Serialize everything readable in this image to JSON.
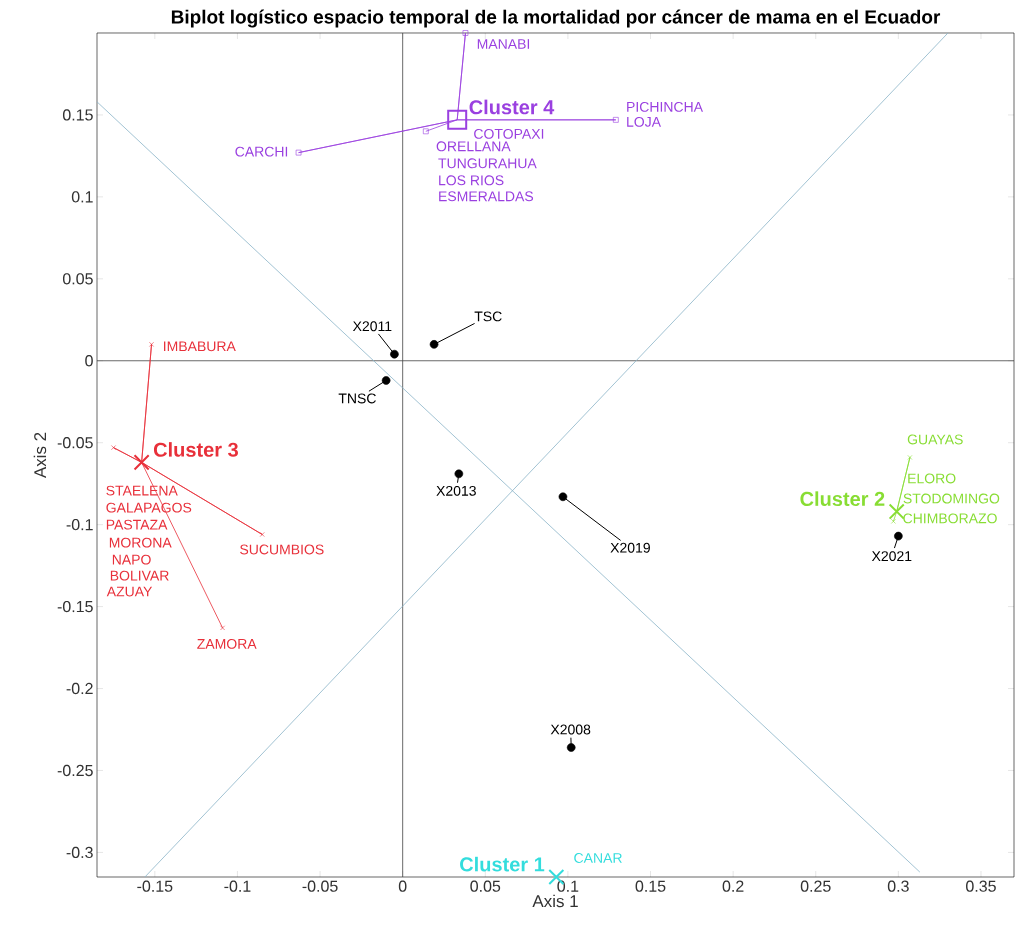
{
  "chart_data": {
    "type": "scatter",
    "title": "Biplot logístico espacio temporal de la mortalidad por cáncer de mama en el Ecuador",
    "xlabel": "Axis 1",
    "ylabel": "Axis 2",
    "xlim": [
      -0.185,
      0.37
    ],
    "ylim": [
      -0.315,
      0.2
    ],
    "xticks": [
      -0.15,
      -0.1,
      -0.05,
      0,
      0.05,
      0.1,
      0.15,
      0.2,
      0.25,
      0.3,
      0.35
    ],
    "yticks": [
      -0.3,
      -0.25,
      -0.2,
      -0.15,
      -0.1,
      -0.05,
      0,
      0.05,
      0.1,
      0.15
    ],
    "series": [
      {
        "type": "line",
        "color": "#444444",
        "x": [
          0,
          0
        ],
        "values": [
          -0.315,
          0.2
        ]
      },
      {
        "type": "line",
        "color": "#444444",
        "x": [
          -0.185,
          0.37
        ],
        "values": [
          0,
          0
        ]
      },
      {
        "type": "line",
        "color": "#8ab4c8",
        "x": [
          -0.185,
          0.313
        ],
        "values": [
          0.158,
          -0.312
        ]
      },
      {
        "type": "line",
        "color": "#8ab4c8",
        "x": [
          -0.156,
          0.33
        ],
        "values": [
          -0.315,
          0.2
        ]
      },
      {
        "type": "line",
        "color": "#9a40e0",
        "marker": "square",
        "x": [
          0.033,
          0.038,
          0.033,
          0.129,
          0.033,
          -0.063,
          0.033,
          0.014
        ],
        "values": [
          0.147,
          0.2,
          0.147,
          0.147,
          0.147,
          0.127,
          0.147,
          0.14
        ]
      },
      {
        "type": "line",
        "color": "#e8303a",
        "marker": "cross",
        "x": [
          -0.158,
          -0.152,
          -0.158,
          -0.175,
          -0.158,
          -0.085,
          -0.158,
          -0.109
        ],
        "values": [
          -0.062,
          0.01,
          -0.062,
          -0.053,
          -0.062,
          -0.106,
          -0.062,
          -0.163
        ]
      },
      {
        "type": "line",
        "color": "#88dd33",
        "marker": "cross",
        "x": [
          0.299,
          0.307,
          0.299,
          0.297
        ],
        "values": [
          -0.092,
          -0.059,
          -0.092,
          -0.098
        ]
      },
      {
        "name": "Cluster 4",
        "color": "#9a40e0",
        "marker": "square",
        "x": [
          0.033
        ],
        "values": [
          0.147
        ]
      },
      {
        "name": "Cluster 3",
        "color": "#e8303a",
        "marker": "cross",
        "x": [
          -0.158
        ],
        "values": [
          -0.062
        ]
      },
      {
        "name": "Cluster 2",
        "color": "#88dd33",
        "marker": "cross",
        "x": [
          0.299
        ],
        "values": [
          -0.092
        ]
      },
      {
        "name": "Cluster 1",
        "color": "#33dddd",
        "marker": "cross",
        "x": [
          0.093
        ],
        "values": [
          -0.315
        ]
      },
      {
        "color": "#000000",
        "marker": "circle",
        "x": [
          -0.005,
          0.019,
          -0.01,
          0.034,
          0.097,
          0.3,
          0.102
        ],
        "values": [
          0.004,
          0.01,
          -0.012,
          -0.069,
          -0.083,
          -0.107,
          -0.236
        ]
      }
    ],
    "annotations": [
      {
        "text": "MANABI",
        "x": 0.038,
        "y": 0.2
      },
      {
        "text": "PICHINCHA",
        "x": 0.129,
        "y": 0.147
      },
      {
        "text": "LOJA",
        "x": 0.129,
        "y": 0.147
      },
      {
        "text": "COTOPAXI",
        "x": 0.033,
        "y": 0.147
      },
      {
        "text": "ORELLANA",
        "x": 0.014,
        "y": 0.14
      },
      {
        "text": "TUNGURAHUA",
        "x": 0.014,
        "y": 0.14
      },
      "LOS RIOS",
      "ESMERALDAS",
      {
        "text": "CARCHI",
        "x": -0.063,
        "y": 0.127
      },
      {
        "text": "IMBABURA",
        "x": -0.152,
        "y": 0.01
      },
      {
        "text": "STAELENA",
        "x": -0.175,
        "y": -0.053
      },
      "GALAPAGOS",
      "PASTAZA",
      "MORONA",
      "NAPO",
      "BOLIVAR",
      "AZUAY",
      {
        "text": "SUCUMBIOS",
        "x": -0.085,
        "y": -0.106
      },
      {
        "text": "ZAMORA",
        "x": -0.109,
        "y": -0.163
      },
      {
        "text": "GUAYAS",
        "x": 0.307,
        "y": -0.059
      },
      {
        "text": "ELORO",
        "x": 0.307,
        "y": -0.059
      },
      {
        "text": "STODOMINGO",
        "x": 0.299,
        "y": -0.092
      },
      {
        "text": "CHIMBORAZO",
        "x": 0.297,
        "y": -0.098
      },
      {
        "text": "CANAR",
        "x": 0.093,
        "y": -0.315
      },
      {
        "text": "X2011",
        "x": -0.005,
        "y": 0.004
      },
      {
        "text": "TSC",
        "x": 0.019,
        "y": 0.01
      },
      {
        "text": "TNSC",
        "x": -0.01,
        "y": -0.012
      },
      {
        "text": "X2013",
        "x": 0.034,
        "y": -0.069
      },
      {
        "text": "X2019",
        "x": 0.097,
        "y": -0.083
      },
      {
        "text": "X2021",
        "x": 0.3,
        "y": -0.107
      },
      {
        "text": "X2008",
        "x": 0.102,
        "y": -0.236
      }
    ]
  }
}
